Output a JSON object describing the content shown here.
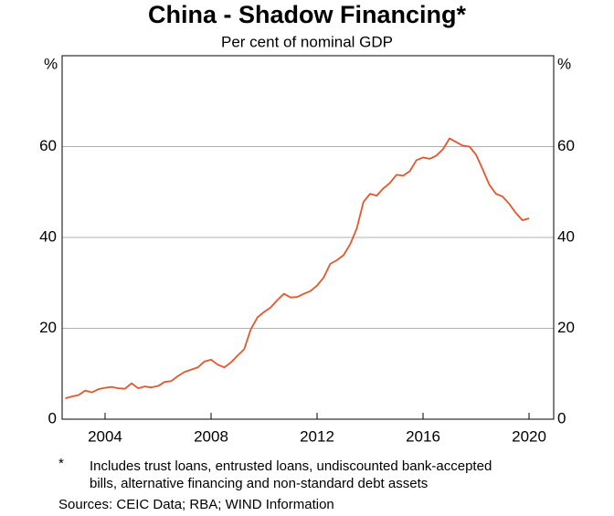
{
  "chart_data": {
    "type": "line",
    "title": "China - Shadow Financing*",
    "subtitle": "Per cent of nominal GDP",
    "y_label": "%",
    "y2_label": "%",
    "x": [
      2002.5,
      2002.75,
      2003,
      2003.25,
      2003.5,
      2003.75,
      2004,
      2004.25,
      2004.5,
      2004.75,
      2005,
      2005.25,
      2005.5,
      2005.75,
      2006,
      2006.25,
      2006.5,
      2006.75,
      2007,
      2007.25,
      2007.5,
      2007.75,
      2008,
      2008.25,
      2008.5,
      2008.75,
      2009,
      2009.25,
      2009.5,
      2009.75,
      2010,
      2010.25,
      2010.5,
      2010.75,
      2011,
      2011.25,
      2011.5,
      2011.75,
      2012,
      2012.25,
      2012.5,
      2012.75,
      2013,
      2013.25,
      2013.5,
      2013.75,
      2014,
      2014.25,
      2014.5,
      2014.75,
      2015,
      2015.25,
      2015.5,
      2015.75,
      2016,
      2016.25,
      2016.5,
      2016.75,
      2017,
      2017.25,
      2017.5,
      2017.75,
      2018,
      2018.25,
      2018.5,
      2018.75,
      2019,
      2019.25,
      2019.5,
      2019.75,
      2020
    ],
    "series": [
      {
        "name": "Shadow financing",
        "color": "#e4572e",
        "values": [
          4.6,
          5.0,
          5.3,
          6.3,
          5.9,
          6.6,
          6.9,
          7.1,
          6.8,
          6.7,
          7.9,
          6.8,
          7.2,
          7.0,
          7.3,
          8.2,
          8.4,
          9.5,
          10.4,
          10.9,
          11.4,
          12.7,
          13.1,
          12.0,
          11.4,
          12.5,
          14.0,
          15.4,
          19.8,
          22.4,
          23.6,
          24.6,
          26.2,
          27.6,
          26.8,
          26.9,
          27.6,
          28.2,
          29.4,
          31.2,
          34.2,
          35.0,
          36.1,
          38.5,
          42.0,
          47.8,
          49.6,
          49.2,
          50.8,
          52.0,
          53.8,
          53.6,
          54.6,
          57.0,
          57.6,
          57.3,
          58.0,
          59.4,
          61.8,
          61.0,
          60.2,
          60.0,
          58.2,
          55.0,
          51.6,
          49.6,
          49.0,
          47.4,
          45.4,
          43.8,
          44.2
        ]
      }
    ],
    "xlim": [
      2002.38,
      2020.93
    ],
    "xticks": [
      2004,
      2008,
      2012,
      2016,
      2020
    ],
    "ylim": [
      0,
      80
    ],
    "yticks": [
      0,
      20,
      40,
      60
    ],
    "grid": true,
    "footnote_marker": "*",
    "footnote": [
      "Includes trust loans, entrusted loans, undiscounted bank-accepted",
      "bills, alternative financing and non-standard debt assets"
    ],
    "sources": "Sources: CEIC Data; RBA; WIND Information"
  }
}
